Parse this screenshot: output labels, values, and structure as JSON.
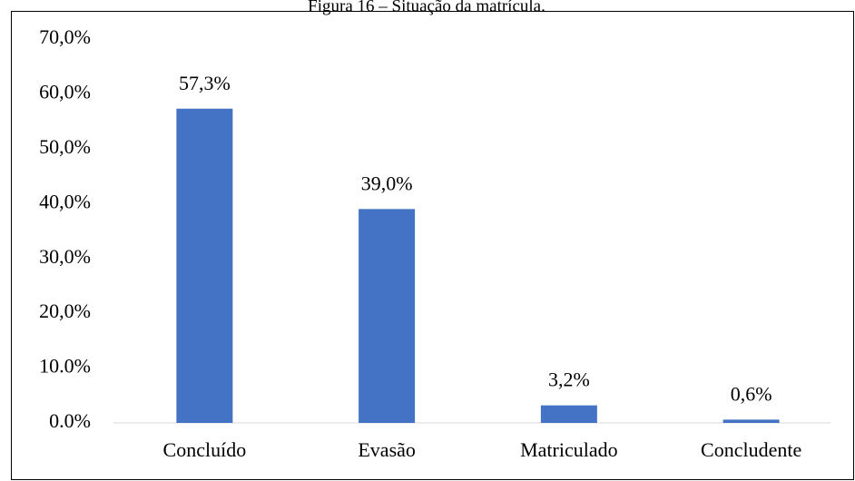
{
  "chart_data": {
    "type": "bar",
    "title": "Figura 16 – Situação da matrícula.",
    "categories": [
      "Concluído",
      "Evasão",
      "Matriculado",
      "Concludente"
    ],
    "values": [
      57.3,
      39.0,
      3.2,
      0.6
    ],
    "value_labels": [
      "57,3%",
      "39,0%",
      "3,2%",
      "0,6%"
    ],
    "color": "#4472c4",
    "ylim": [
      0,
      70
    ],
    "yticks": [
      {
        "value": 0,
        "label": "0.0%"
      },
      {
        "value": 10,
        "label": "10.0%"
      },
      {
        "value": 20,
        "label": "20,0%"
      },
      {
        "value": 30,
        "label": "30,0%"
      },
      {
        "value": 40,
        "label": "40,0%"
      },
      {
        "value": 50,
        "label": "50,0%"
      },
      {
        "value": 60,
        "label": "60,0%"
      },
      {
        "value": 70,
        "label": "70,0%"
      }
    ],
    "grid": false
  }
}
